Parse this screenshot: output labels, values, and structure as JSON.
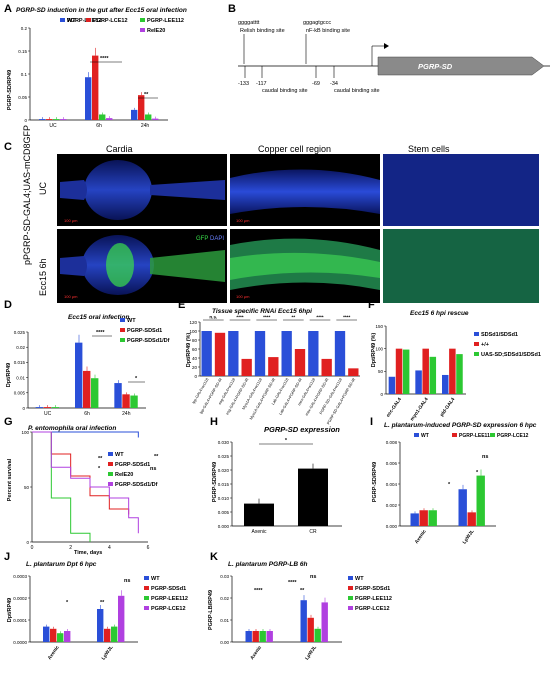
{
  "panels": {
    "A": {
      "label": "A",
      "title": "PGRP-SD induction in the gut after Ecc15 oral infection",
      "ylabel": "PGRP-SD/RP49",
      "categories": [
        "UC",
        "6h",
        "24h"
      ],
      "ylim": [
        0,
        0.2
      ],
      "yticks": [
        "0",
        "0.05",
        "0.1",
        "0.15",
        "0.2"
      ],
      "sig": [
        "****",
        "**"
      ]
    },
    "B": {
      "label": "B",
      "seq1": "ggggatttt",
      "seq2": "gggagtgccc",
      "site1": "Relish binding site",
      "site2": "nF-kB binding site",
      "caudal": "caudal binding site",
      "pos": [
        "-133",
        "-117",
        "-69",
        "-34"
      ],
      "gene": "PGRP-SD"
    },
    "C": {
      "label": "C",
      "cols": [
        "Cardia",
        "Copper cell region",
        "Stem cells"
      ],
      "row1": "UC",
      "row2": "Ecc15 6h",
      "genotype": "pPGRP-SD-GAL4;UAS-mCD8GFP",
      "gfp": "GFP",
      "dapi": "DAPI",
      "scale": "100 μm"
    },
    "D": {
      "label": "D",
      "title": "Ecc15 oral infection",
      "ylabel": "Dpt/RP49",
      "categories": [
        "UC",
        "6h",
        "24h"
      ],
      "ylim": [
        0,
        0.025
      ],
      "yticks": [
        "0",
        "0.005",
        "0.01",
        "0.015",
        "0.02",
        "0.025"
      ],
      "sig": [
        "****",
        "*"
      ]
    },
    "E": {
      "label": "E",
      "title": "Tissue specific RNAi Ecc15 6hpi",
      "ylabel": "Dpt/RP49 (%)",
      "yticks": [
        "0",
        "20",
        "40",
        "60",
        "80",
        "100",
        "120"
      ],
      "sig": [
        "n.s.",
        "****",
        "****",
        "**",
        "****",
        "****"
      ],
      "xlabels": [
        "lpp-GAL4>w1118",
        "lpp-GAL4>PGRP-SD-IR",
        "esg-GAL4>w1118",
        "esg-GAL4>PGRP-SD-IR",
        "Myo1A-GAL4>w1118",
        "Myo1A-GAL4>PGRP-SD-IR",
        "Lab-GAL4>w1118",
        "Lab-GAL4>PGRP-SD-IR",
        "mex-GAL4>w1118",
        "mex-GAL4>PGRP-SD-IR",
        "PGRP-SD-GAL4>w1118",
        "PGRP-SD-GAL4>PGRP-SD-IR"
      ]
    },
    "F": {
      "label": "F",
      "title": "Ecc15 6 hpi rescue",
      "ylabel": "Dpt/RP49 (%)",
      "categories": [
        "ecc-GAL4",
        "myo1-GAL4",
        "pld-GAL4"
      ],
      "yticks": [
        "0",
        "50",
        "100",
        "150"
      ]
    },
    "G": {
      "label": "G",
      "title": "P. entomophila oral infection",
      "ylabel": "Percent survival",
      "xlabel": "Time, days",
      "xticks": [
        "0",
        "2",
        "4",
        "6"
      ],
      "yticks": [
        "0",
        "50",
        "100"
      ],
      "sig": [
        "**",
        "*",
        "**",
        "ns"
      ]
    },
    "H": {
      "label": "H",
      "title": "PGRP-SD expression",
      "ylabel": "PGRP-SD/RP49",
      "categories": [
        "Axenic",
        "CR"
      ],
      "yticks": [
        "0.000",
        "0.005",
        "0.010",
        "0.015",
        "0.020",
        "0.025",
        "0.030"
      ],
      "sig": "*"
    },
    "I": {
      "label": "I",
      "title": "L. plantarum-induced PGRP-SD expression 6 hpc",
      "ylabel": "PGRP-SD/RP49",
      "categories": [
        "Axenic",
        "LpWJL"
      ],
      "yticks": [
        "0.000",
        "0.002",
        "0.004",
        "0.006",
        "0.008"
      ],
      "sig": [
        "*",
        "*",
        "ns"
      ]
    },
    "J": {
      "label": "J",
      "title": "L. plantarum Dpt 6 hpc",
      "ylabel": "Dpt/RP49",
      "categories": [
        "Axenic",
        "LpWJL"
      ],
      "yticks": [
        "0.0000",
        "0.0001",
        "0.0002",
        "0.0003"
      ],
      "sig": [
        "*",
        "**",
        "ns"
      ]
    },
    "K": {
      "label": "K",
      "title": "L. plantarum PGRP-LB 6h",
      "ylabel": "PGRP-LB/RP49",
      "categories": [
        "Axenic",
        "LpWJL"
      ],
      "yticks": [
        "0.00",
        "0.01",
        "0.02",
        "0.03"
      ],
      "sig": [
        "****",
        "****",
        "**",
        "ns"
      ]
    }
  },
  "legends": {
    "A": [
      "WT",
      "PGRP-LCE12",
      "PGRP-LEE112",
      "RelE20"
    ],
    "D": [
      "WT",
      "PGRP-SDSd1",
      "PGRP-SDSd1/Df"
    ],
    "F": [
      "SDSd1/SDSd1",
      "+/+",
      "UAS-SD;SDSd1/SDSd1"
    ],
    "G": [
      "WT",
      "PGRP-SDSd1",
      "RelE20",
      "PGRP-SDSd1/Df"
    ],
    "I": [
      "WT",
      "PGRP-LEE112",
      "PGRP-LCE12"
    ],
    "J": [
      "WT",
      "PGRP-SDSd1",
      "PGRP-LEE112",
      "PGRP-LCE12"
    ],
    "K": [
      "WT",
      "PGRP-SDSd1",
      "PGRP-LEE112",
      "PGRP-LCE12"
    ]
  },
  "chart_data": [
    {
      "panel": "A",
      "type": "bar",
      "categories": [
        "UC",
        "6h",
        "24h"
      ],
      "series": [
        {
          "name": "WT",
          "values": [
            0.002,
            0.093,
            0.022
          ]
        },
        {
          "name": "PGRP-LCE12",
          "values": [
            0.002,
            0.14,
            0.054
          ]
        },
        {
          "name": "PGRP-LEE112",
          "values": [
            0.002,
            0.012,
            0.012
          ]
        },
        {
          "name": "RelE20",
          "values": [
            0.002,
            0.004,
            0.003
          ]
        }
      ]
    },
    {
      "panel": "D",
      "type": "bar",
      "categories": [
        "UC",
        "6h",
        "24h"
      ],
      "series": [
        {
          "name": "WT",
          "values": [
            0.0003,
            0.0215,
            0.0082
          ]
        },
        {
          "name": "PGRP-SDSd1",
          "values": [
            0.0003,
            0.0122,
            0.0045
          ]
        },
        {
          "name": "PGRP-SDSd1/Df",
          "values": [
            0.0003,
            0.0098,
            0.0041
          ]
        }
      ]
    },
    {
      "panel": "E",
      "type": "bar",
      "values": [
        100,
        96,
        100,
        38,
        100,
        42,
        100,
        60,
        100,
        38,
        100,
        17
      ]
    },
    {
      "panel": "F",
      "type": "bar",
      "categories": [
        "ecc-GAL4",
        "myo1-GAL4",
        "pld-GAL4"
      ],
      "series": [
        {
          "name": "SDSd1/SDSd1",
          "values": [
            38,
            52,
            42
          ]
        },
        {
          "name": "+/+",
          "values": [
            100,
            100,
            100
          ]
        },
        {
          "name": "UAS-SD;SDSd1/SDSd1",
          "values": [
            98,
            82,
            88
          ]
        }
      ]
    },
    {
      "panel": "G",
      "type": "line",
      "series": [
        {
          "name": "WT",
          "x": [
            0,
            1,
            2,
            3,
            4,
            5,
            5.5
          ],
          "y": [
            100,
            100,
            100,
            100,
            100,
            100,
            95
          ]
        },
        {
          "name": "PGRP-SDSd1",
          "x": [
            0,
            1,
            2,
            3,
            4,
            5
          ],
          "y": [
            100,
            80,
            60,
            42,
            30,
            25
          ]
        },
        {
          "name": "RelE20",
          "x": [
            0,
            1,
            2,
            3
          ],
          "y": [
            100,
            40,
            8,
            0
          ]
        },
        {
          "name": "PGRP-SDSd1/Df",
          "x": [
            0,
            1,
            2,
            3,
            4,
            5,
            5.5
          ],
          "y": [
            100,
            68,
            58,
            50,
            40,
            22,
            8
          ]
        }
      ]
    },
    {
      "panel": "H",
      "type": "bar",
      "categories": [
        "Axenic",
        "CR"
      ],
      "values": [
        0.008,
        0.0205
      ]
    },
    {
      "panel": "I",
      "type": "bar",
      "categories": [
        "Axenic",
        "LpWJL"
      ],
      "series": [
        {
          "name": "WT",
          "values": [
            0.0012,
            0.0035
          ]
        },
        {
          "name": "PGRP-LEE112",
          "values": [
            0.0015,
            0.0013
          ]
        },
        {
          "name": "PGRP-LCE12",
          "values": [
            0.0015,
            0.0048
          ]
        }
      ]
    },
    {
      "panel": "J",
      "type": "bar",
      "categories": [
        "Axenic",
        "LpWJL"
      ],
      "series": [
        {
          "name": "WT",
          "values": [
            7e-05,
            0.00015
          ]
        },
        {
          "name": "PGRP-SDSd1",
          "values": [
            6e-05,
            6e-05
          ]
        },
        {
          "name": "PGRP-LEE112",
          "values": [
            4e-05,
            7e-05
          ]
        },
        {
          "name": "PGRP-LCE12",
          "values": [
            5e-05,
            0.00021
          ]
        }
      ]
    },
    {
      "panel": "K",
      "type": "bar",
      "categories": [
        "Axenic",
        "LpWJL"
      ],
      "series": [
        {
          "name": "WT",
          "values": [
            0.005,
            0.019
          ]
        },
        {
          "name": "PGRP-SDSd1",
          "values": [
            0.005,
            0.011
          ]
        },
        {
          "name": "PGRP-LEE112",
          "values": [
            0.005,
            0.006
          ]
        },
        {
          "name": "PGRP-LCE12",
          "values": [
            0.005,
            0.018
          ]
        }
      ]
    }
  ],
  "colors": {
    "blue": "#2a4fd8",
    "red": "#e02020",
    "green": "#2cc832",
    "purple": "#b040e0",
    "black": "#000000",
    "grey": "#777777"
  }
}
